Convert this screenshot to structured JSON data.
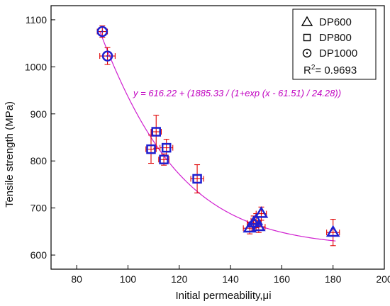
{
  "chart_data": {
    "type": "scatter",
    "xlabel": "Initial permeability,μi",
    "ylabel": "Tensile strength (MPa)",
    "xlim": [
      70,
      200
    ],
    "ylim": [
      570,
      1130
    ],
    "xticks": [
      80,
      100,
      120,
      140,
      160,
      180,
      200
    ],
    "yticks": [
      600,
      700,
      800,
      900,
      1000,
      1100
    ],
    "colors": {
      "marker": "#1f1fd0",
      "errorbar": "#e00000",
      "fit": "#d020d0",
      "axis": "#000000"
    },
    "legend": {
      "position": "top-right",
      "r2_label": "R",
      "r2_sup": "2",
      "r2_value": "= 0.9693"
    },
    "series": [
      {
        "name": "DP600",
        "marker": "triangle",
        "points": [
          {
            "x": 147.5,
            "y": 657,
            "xerr": 2.5,
            "yerr": 12
          },
          {
            "x": 149,
            "y": 668,
            "xerr": 2.5,
            "yerr": 15
          },
          {
            "x": 150,
            "y": 673,
            "xerr": 2,
            "yerr": 15
          },
          {
            "x": 151,
            "y": 660,
            "xerr": 2.5,
            "yerr": 12
          },
          {
            "x": 152,
            "y": 688,
            "xerr": 2,
            "yerr": 14
          },
          {
            "x": 180,
            "y": 648,
            "xerr": 2.5,
            "yerr": 28
          }
        ]
      },
      {
        "name": "DP800",
        "marker": "square",
        "points": [
          {
            "x": 109,
            "y": 825,
            "xerr": 2,
            "yerr": 30
          },
          {
            "x": 111,
            "y": 862,
            "xerr": 2,
            "yerr": 35
          },
          {
            "x": 114,
            "y": 803,
            "xerr": 2,
            "yerr": 12
          },
          {
            "x": 115,
            "y": 828,
            "xerr": 2.5,
            "yerr": 18
          },
          {
            "x": 127,
            "y": 762,
            "xerr": 2.5,
            "yerr": 30
          }
        ]
      },
      {
        "name": "DP1000",
        "marker": "circle",
        "points": [
          {
            "x": 90,
            "y": 1075,
            "xerr": 2,
            "yerr": 12
          },
          {
            "x": 92,
            "y": 1023,
            "xerr": 3,
            "yerr": 18
          }
        ]
      }
    ],
    "fit": {
      "equation": "y = 616.22 + (1885.33 / (1+exp (x - 61.51) / 24.28))",
      "y0": 616.22,
      "A": 1885.33,
      "x0": 61.51,
      "t": 24.28,
      "x_range": [
        89,
        181
      ]
    }
  }
}
